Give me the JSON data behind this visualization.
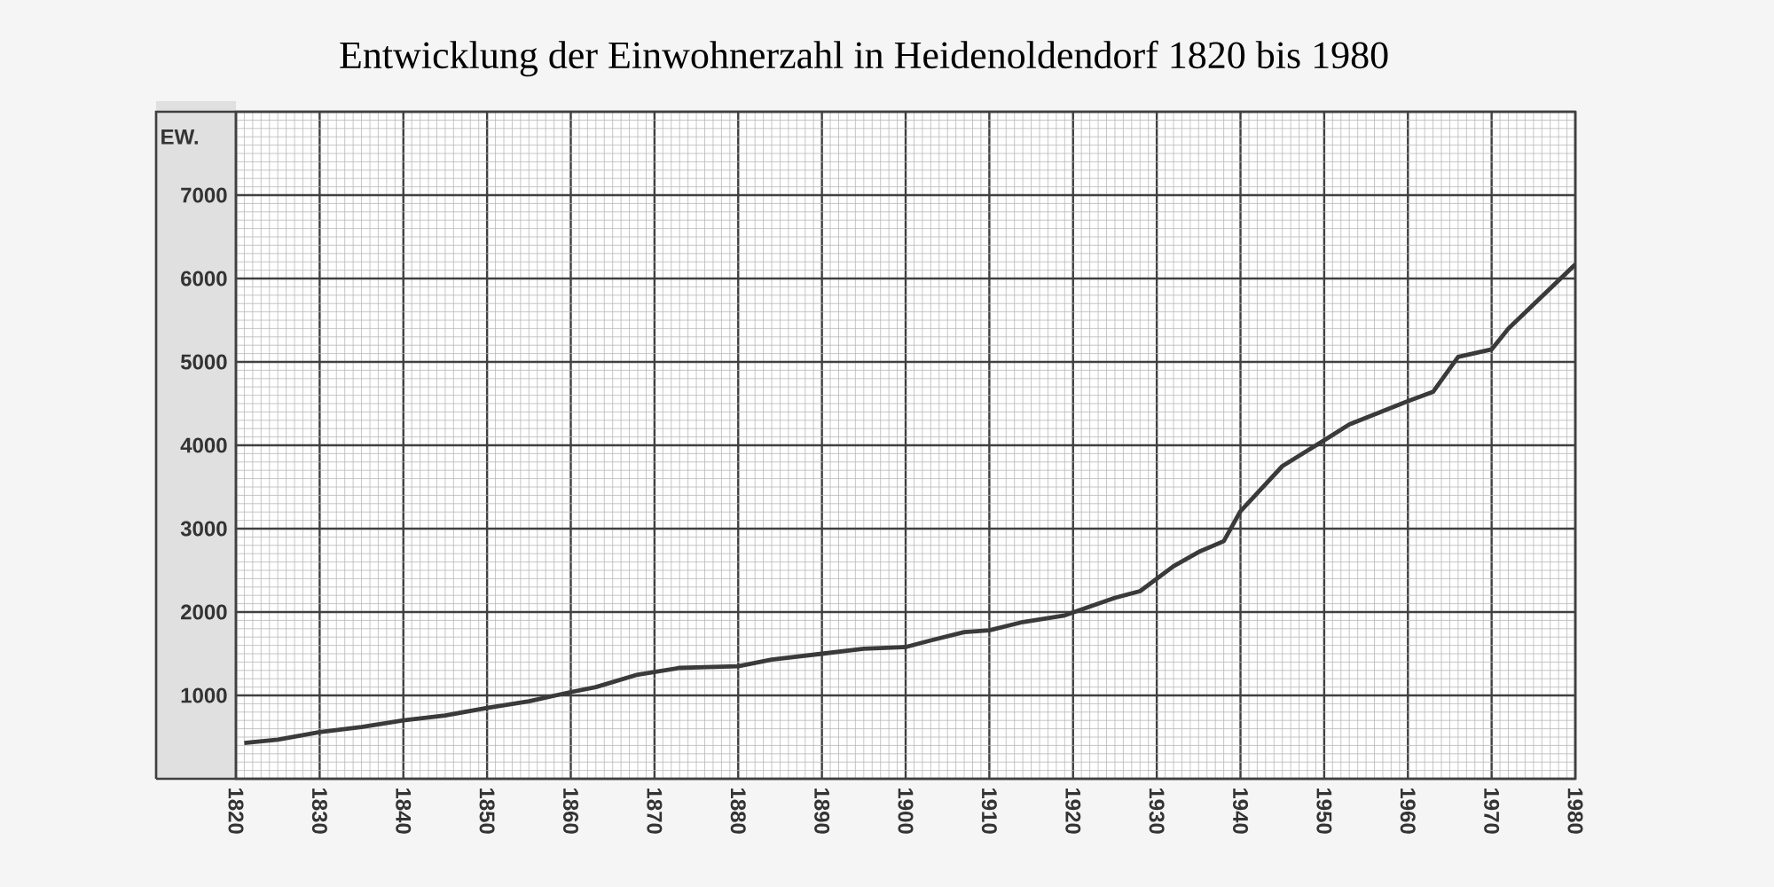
{
  "chart_data": {
    "type": "line",
    "title": "Entwicklung der Einwohnerzahl in Heidenoldendorf 1820 bis 1980",
    "ylabel": "EW.",
    "x": [
      1821,
      1825,
      1830,
      1835,
      1840,
      1845,
      1850,
      1855,
      1860,
      1863,
      1868,
      1873,
      1876,
      1880,
      1884,
      1890,
      1895,
      1900,
      1903,
      1907,
      1910,
      1914,
      1919,
      1925,
      1928,
      1932,
      1935,
      1938,
      1940,
      1945,
      1950,
      1953,
      1960,
      1963,
      1966,
      1970,
      1972,
      1980
    ],
    "series": [
      {
        "color": "#3a3a3a",
        "values": [
          430,
          470,
          560,
          620,
          700,
          760,
          850,
          930,
          1040,
          1100,
          1250,
          1330,
          1340,
          1350,
          1430,
          1500,
          1560,
          1580,
          1660,
          1760,
          1780,
          1880,
          1960,
          2170,
          2250,
          2550,
          2720,
          2850,
          3210,
          3750,
          4060,
          4250,
          4530,
          4640,
          5060,
          5150,
          5400,
          6170
        ]
      }
    ],
    "xlim": [
      1820,
      1980
    ],
    "ylim": [
      0,
      8000
    ],
    "xticks": [
      1820,
      1830,
      1840,
      1850,
      1860,
      1870,
      1880,
      1890,
      1900,
      1910,
      1920,
      1930,
      1940,
      1950,
      1960,
      1970,
      1980
    ],
    "yticks": [
      {
        "value": 0,
        "label": null
      },
      1000,
      2000,
      3000,
      4000,
      5000,
      6000,
      7000,
      {
        "value": 8000,
        "label": null
      }
    ],
    "grid": true
  }
}
